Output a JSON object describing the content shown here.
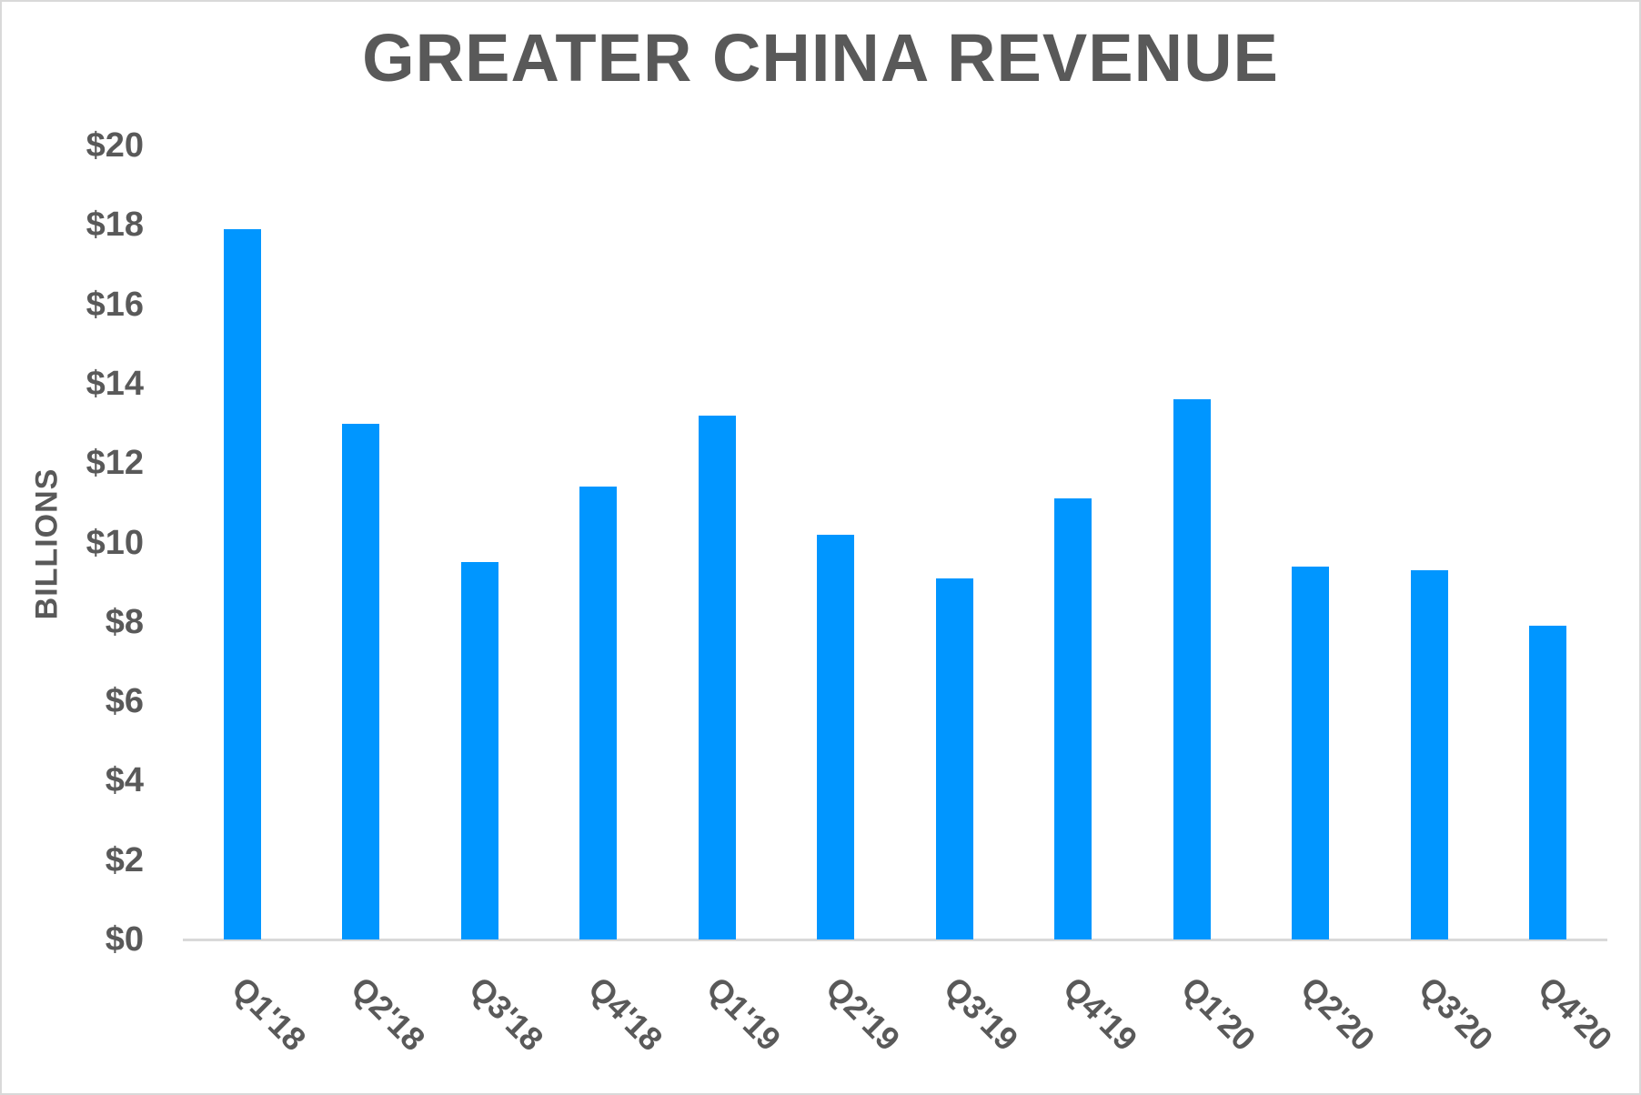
{
  "chart_data": {
    "type": "bar",
    "title": "GREATER CHINA REVENUE",
    "xlabel": "",
    "ylabel": "BILLIONS",
    "categories": [
      "Q1'18",
      "Q2'18",
      "Q3'18",
      "Q4'18",
      "Q1'19",
      "Q2'19",
      "Q3'19",
      "Q4'19",
      "Q1'20",
      "Q2'20",
      "Q3'20",
      "Q4'20"
    ],
    "values": [
      17.9,
      13.0,
      9.5,
      11.4,
      13.2,
      10.2,
      9.1,
      11.1,
      13.6,
      9.4,
      9.3,
      7.9
    ],
    "ylim": [
      0,
      20
    ],
    "yticks": [
      0,
      2,
      4,
      6,
      8,
      10,
      12,
      14,
      16,
      18,
      20
    ],
    "ytick_labels": [
      "$0",
      "$2",
      "$4",
      "$6",
      "$8",
      "$10",
      "$12",
      "$14",
      "$16",
      "$18",
      "$20"
    ],
    "grid": false,
    "legend": "none",
    "bar_color": "#0096ff",
    "text_color": "#595959"
  }
}
